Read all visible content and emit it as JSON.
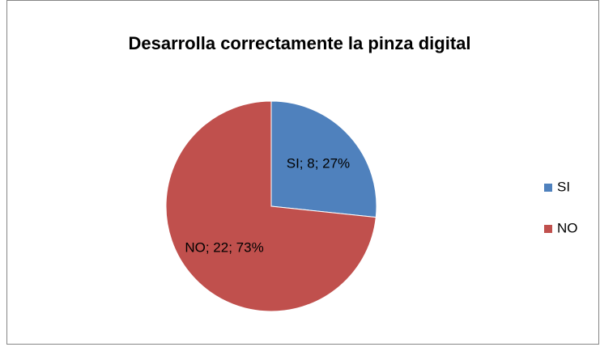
{
  "chart_data": {
    "type": "pie",
    "title": "Desarrolla correctamente la pinza digital",
    "categories": [
      "SI",
      "NO"
    ],
    "values": [
      8,
      22
    ],
    "value_labels": [
      "SI; 8; 27%",
      "NO; 22; 73%"
    ],
    "colors": [
      "#4f81bd",
      "#c0504d"
    ],
    "legend": "right"
  }
}
